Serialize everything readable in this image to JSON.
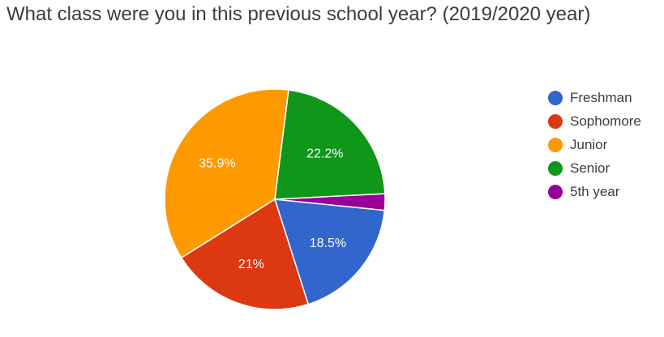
{
  "chart_data": {
    "type": "pie",
    "title": "What class were you in this previous school year? (2019/2020 year)",
    "legend_position": "right",
    "slices": [
      {
        "name": "Freshman",
        "value": 18.5,
        "label": "18.5%",
        "color": "#3366cc"
      },
      {
        "name": "Sophomore",
        "value": 21.0,
        "label": "21%",
        "color": "#dc3912"
      },
      {
        "name": "Junior",
        "value": 35.9,
        "label": "35.9%",
        "color": "#ff9900"
      },
      {
        "name": "Senior",
        "value": 22.2,
        "label": "22.2%",
        "color": "#109618"
      },
      {
        "name": "5th year",
        "value": 2.4,
        "label": "",
        "color": "#990099"
      }
    ]
  }
}
